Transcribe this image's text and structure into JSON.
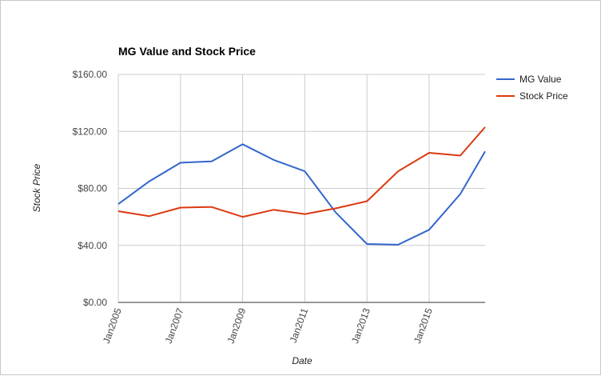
{
  "chart_data": {
    "type": "line",
    "title": "MG Value and Stock Price",
    "xlabel": "Date",
    "ylabel": "Stock Price",
    "x_ticks": [
      "Jan2005",
      "Jan2007",
      "Jan2009",
      "Jan2011",
      "Jan2013",
      "Jan2015"
    ],
    "x": [
      2005,
      2006,
      2007,
      2008,
      2009,
      2010,
      2011,
      2012,
      2013,
      2014,
      2015,
      2016,
      2016.8
    ],
    "xlim": [
      2005,
      2016.8
    ],
    "ylim": [
      0,
      160
    ],
    "y_ticks": [
      "$0.00",
      "$40.00",
      "$80.00",
      "$120.00",
      "$160.00"
    ],
    "y_tick_values": [
      0,
      40,
      80,
      120,
      160
    ],
    "grid": true,
    "legend_position": "right",
    "series": [
      {
        "name": "MG Value",
        "color": "#3366cc",
        "values": [
          69,
          85,
          98,
          99,
          111,
          100,
          92,
          63,
          41,
          40.5,
          51,
          76,
          106
        ]
      },
      {
        "name": "Stock Price",
        "color": "#dc3912",
        "values": [
          64,
          60.5,
          66.5,
          67,
          60,
          65,
          62,
          66,
          71,
          92,
          105,
          103,
          123
        ]
      }
    ]
  }
}
